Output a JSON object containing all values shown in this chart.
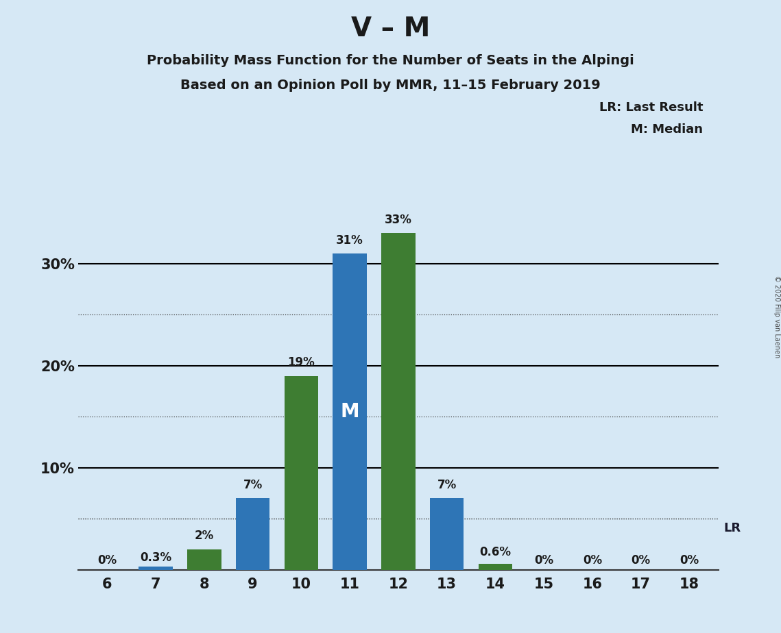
{
  "title": "V – M",
  "subtitle1": "Probability Mass Function for the Number of Seats in the Alpingi",
  "subtitle2": "Based on an Opinion Poll by MMR, 11–15 February 2019",
  "copyright": "© 2020 Filip van Laenen",
  "seats": [
    6,
    7,
    8,
    9,
    10,
    11,
    12,
    13,
    14,
    15,
    16,
    17,
    18
  ],
  "values": [
    0.0,
    0.3,
    2.0,
    7.0,
    19.0,
    31.0,
    33.0,
    7.0,
    0.6,
    0.0,
    0.0,
    0.0,
    0.0
  ],
  "colors": [
    "#2E75B6",
    "#2E75B6",
    "#3E7D32",
    "#2E75B6",
    "#3E7D32",
    "#2E75B6",
    "#3E7D32",
    "#2E75B6",
    "#3E7D32",
    "#2E75B6",
    "#3E7D32",
    "#2E75B6",
    "#3E7D32"
  ],
  "labels": [
    "0%",
    "0.3%",
    "2%",
    "7%",
    "19%",
    "31%",
    "33%",
    "7%",
    "0.6%",
    "0%",
    "0%",
    "0%",
    "0%"
  ],
  "blue_color": "#2E75B6",
  "green_color": "#3E7D32",
  "background_color": "#D6E8F5",
  "median_seat": 11,
  "median_seat_idx": 5,
  "lr_value": 5.0,
  "lr_label": "LR",
  "legend_lr": "LR: Last Result",
  "legend_m": "M: Median",
  "ylim": [
    0,
    36
  ],
  "solid_yticks": [
    10,
    20,
    30
  ],
  "dotted_yticks": [
    5,
    15,
    25
  ],
  "bar_width": 0.7
}
